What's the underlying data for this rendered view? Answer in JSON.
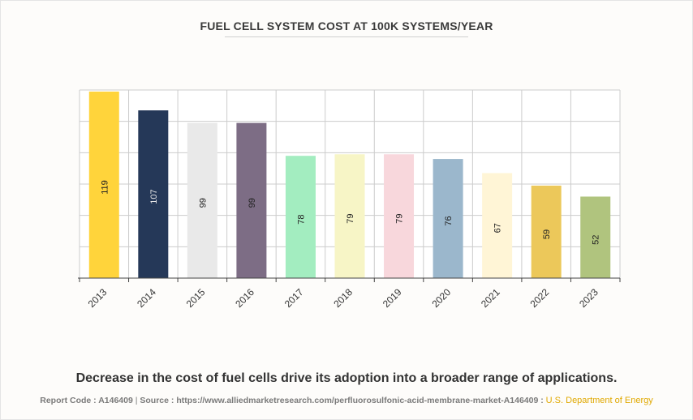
{
  "chart_data": {
    "type": "bar",
    "title": "FUEL CELL SYSTEM COST AT 100K SYSTEMS/YEAR",
    "categories": [
      "2013",
      "2014",
      "2015",
      "2016",
      "2017",
      "2018",
      "2019",
      "2020",
      "2021",
      "2022",
      "2023"
    ],
    "values": [
      119,
      107,
      99,
      99,
      78,
      79,
      79,
      76,
      67,
      59,
      52
    ],
    "colors": [
      "#ffd43b",
      "#253858",
      "#e9e9e9",
      "#7d6d85",
      "#a3edc0",
      "#f7f5c6",
      "#f8d7dc",
      "#9bb7cc",
      "#fff5d6",
      "#ecc85a",
      "#b0c47e"
    ],
    "ylim": [
      0,
      120
    ],
    "grid": true,
    "xlabel": "",
    "ylabel": ""
  },
  "caption": "Decrease in the cost of fuel cells drive its adoption into a broader range of applications.",
  "footer": {
    "report_code": "Report Code : A146409",
    "separator": "|",
    "source_label": "Source : https://www.alliedmarketresearch.com/perfluorosulfonic-acid-membrane-market-A146409 :",
    "source_name": "U.S. Department of Energy"
  }
}
